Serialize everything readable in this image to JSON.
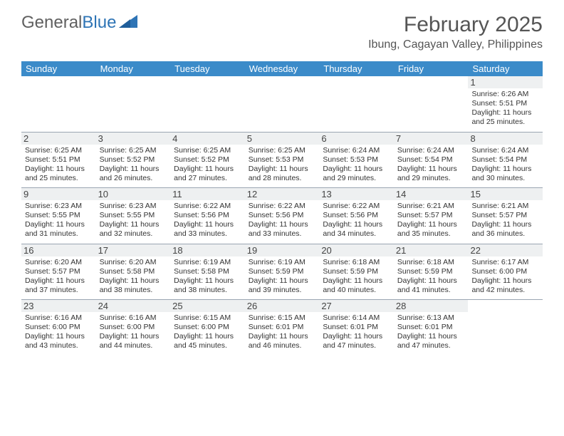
{
  "branding": {
    "logo_general": "General",
    "logo_blue": "Blue",
    "logo_icon_color": "#2e74b5"
  },
  "header": {
    "month_title": "February 2025",
    "location": "Ibung, Cagayan Valley, Philippines"
  },
  "colors": {
    "header_bar": "#3b8bc9",
    "header_text": "#ffffff",
    "daynum_bg": "#eef0f1",
    "divider": "#9aa6b2",
    "body_text": "#333333",
    "title_text": "#555555"
  },
  "typography": {
    "title_fontsize": 30,
    "location_fontsize": 16,
    "dow_fontsize": 13,
    "daynum_fontsize": 13,
    "info_fontsize": 10.5
  },
  "days_of_week": [
    "Sunday",
    "Monday",
    "Tuesday",
    "Wednesday",
    "Thursday",
    "Friday",
    "Saturday"
  ],
  "weeks": [
    [
      {
        "day": "",
        "sunrise": "",
        "sunset": "",
        "daylight": ""
      },
      {
        "day": "",
        "sunrise": "",
        "sunset": "",
        "daylight": ""
      },
      {
        "day": "",
        "sunrise": "",
        "sunset": "",
        "daylight": ""
      },
      {
        "day": "",
        "sunrise": "",
        "sunset": "",
        "daylight": ""
      },
      {
        "day": "",
        "sunrise": "",
        "sunset": "",
        "daylight": ""
      },
      {
        "day": "",
        "sunrise": "",
        "sunset": "",
        "daylight": ""
      },
      {
        "day": "1",
        "sunrise": "Sunrise: 6:26 AM",
        "sunset": "Sunset: 5:51 PM",
        "daylight": "Daylight: 11 hours and 25 minutes."
      }
    ],
    [
      {
        "day": "2",
        "sunrise": "Sunrise: 6:25 AM",
        "sunset": "Sunset: 5:51 PM",
        "daylight": "Daylight: 11 hours and 25 minutes."
      },
      {
        "day": "3",
        "sunrise": "Sunrise: 6:25 AM",
        "sunset": "Sunset: 5:52 PM",
        "daylight": "Daylight: 11 hours and 26 minutes."
      },
      {
        "day": "4",
        "sunrise": "Sunrise: 6:25 AM",
        "sunset": "Sunset: 5:52 PM",
        "daylight": "Daylight: 11 hours and 27 minutes."
      },
      {
        "day": "5",
        "sunrise": "Sunrise: 6:25 AM",
        "sunset": "Sunset: 5:53 PM",
        "daylight": "Daylight: 11 hours and 28 minutes."
      },
      {
        "day": "6",
        "sunrise": "Sunrise: 6:24 AM",
        "sunset": "Sunset: 5:53 PM",
        "daylight": "Daylight: 11 hours and 29 minutes."
      },
      {
        "day": "7",
        "sunrise": "Sunrise: 6:24 AM",
        "sunset": "Sunset: 5:54 PM",
        "daylight": "Daylight: 11 hours and 29 minutes."
      },
      {
        "day": "8",
        "sunrise": "Sunrise: 6:24 AM",
        "sunset": "Sunset: 5:54 PM",
        "daylight": "Daylight: 11 hours and 30 minutes."
      }
    ],
    [
      {
        "day": "9",
        "sunrise": "Sunrise: 6:23 AM",
        "sunset": "Sunset: 5:55 PM",
        "daylight": "Daylight: 11 hours and 31 minutes."
      },
      {
        "day": "10",
        "sunrise": "Sunrise: 6:23 AM",
        "sunset": "Sunset: 5:55 PM",
        "daylight": "Daylight: 11 hours and 32 minutes."
      },
      {
        "day": "11",
        "sunrise": "Sunrise: 6:22 AM",
        "sunset": "Sunset: 5:56 PM",
        "daylight": "Daylight: 11 hours and 33 minutes."
      },
      {
        "day": "12",
        "sunrise": "Sunrise: 6:22 AM",
        "sunset": "Sunset: 5:56 PM",
        "daylight": "Daylight: 11 hours and 33 minutes."
      },
      {
        "day": "13",
        "sunrise": "Sunrise: 6:22 AM",
        "sunset": "Sunset: 5:56 PM",
        "daylight": "Daylight: 11 hours and 34 minutes."
      },
      {
        "day": "14",
        "sunrise": "Sunrise: 6:21 AM",
        "sunset": "Sunset: 5:57 PM",
        "daylight": "Daylight: 11 hours and 35 minutes."
      },
      {
        "day": "15",
        "sunrise": "Sunrise: 6:21 AM",
        "sunset": "Sunset: 5:57 PM",
        "daylight": "Daylight: 11 hours and 36 minutes."
      }
    ],
    [
      {
        "day": "16",
        "sunrise": "Sunrise: 6:20 AM",
        "sunset": "Sunset: 5:57 PM",
        "daylight": "Daylight: 11 hours and 37 minutes."
      },
      {
        "day": "17",
        "sunrise": "Sunrise: 6:20 AM",
        "sunset": "Sunset: 5:58 PM",
        "daylight": "Daylight: 11 hours and 38 minutes."
      },
      {
        "day": "18",
        "sunrise": "Sunrise: 6:19 AM",
        "sunset": "Sunset: 5:58 PM",
        "daylight": "Daylight: 11 hours and 38 minutes."
      },
      {
        "day": "19",
        "sunrise": "Sunrise: 6:19 AM",
        "sunset": "Sunset: 5:59 PM",
        "daylight": "Daylight: 11 hours and 39 minutes."
      },
      {
        "day": "20",
        "sunrise": "Sunrise: 6:18 AM",
        "sunset": "Sunset: 5:59 PM",
        "daylight": "Daylight: 11 hours and 40 minutes."
      },
      {
        "day": "21",
        "sunrise": "Sunrise: 6:18 AM",
        "sunset": "Sunset: 5:59 PM",
        "daylight": "Daylight: 11 hours and 41 minutes."
      },
      {
        "day": "22",
        "sunrise": "Sunrise: 6:17 AM",
        "sunset": "Sunset: 6:00 PM",
        "daylight": "Daylight: 11 hours and 42 minutes."
      }
    ],
    [
      {
        "day": "23",
        "sunrise": "Sunrise: 6:16 AM",
        "sunset": "Sunset: 6:00 PM",
        "daylight": "Daylight: 11 hours and 43 minutes."
      },
      {
        "day": "24",
        "sunrise": "Sunrise: 6:16 AM",
        "sunset": "Sunset: 6:00 PM",
        "daylight": "Daylight: 11 hours and 44 minutes."
      },
      {
        "day": "25",
        "sunrise": "Sunrise: 6:15 AM",
        "sunset": "Sunset: 6:00 PM",
        "daylight": "Daylight: 11 hours and 45 minutes."
      },
      {
        "day": "26",
        "sunrise": "Sunrise: 6:15 AM",
        "sunset": "Sunset: 6:01 PM",
        "daylight": "Daylight: 11 hours and 46 minutes."
      },
      {
        "day": "27",
        "sunrise": "Sunrise: 6:14 AM",
        "sunset": "Sunset: 6:01 PM",
        "daylight": "Daylight: 11 hours and 47 minutes."
      },
      {
        "day": "28",
        "sunrise": "Sunrise: 6:13 AM",
        "sunset": "Sunset: 6:01 PM",
        "daylight": "Daylight: 11 hours and 47 minutes."
      },
      {
        "day": "",
        "sunrise": "",
        "sunset": "",
        "daylight": ""
      }
    ]
  ]
}
